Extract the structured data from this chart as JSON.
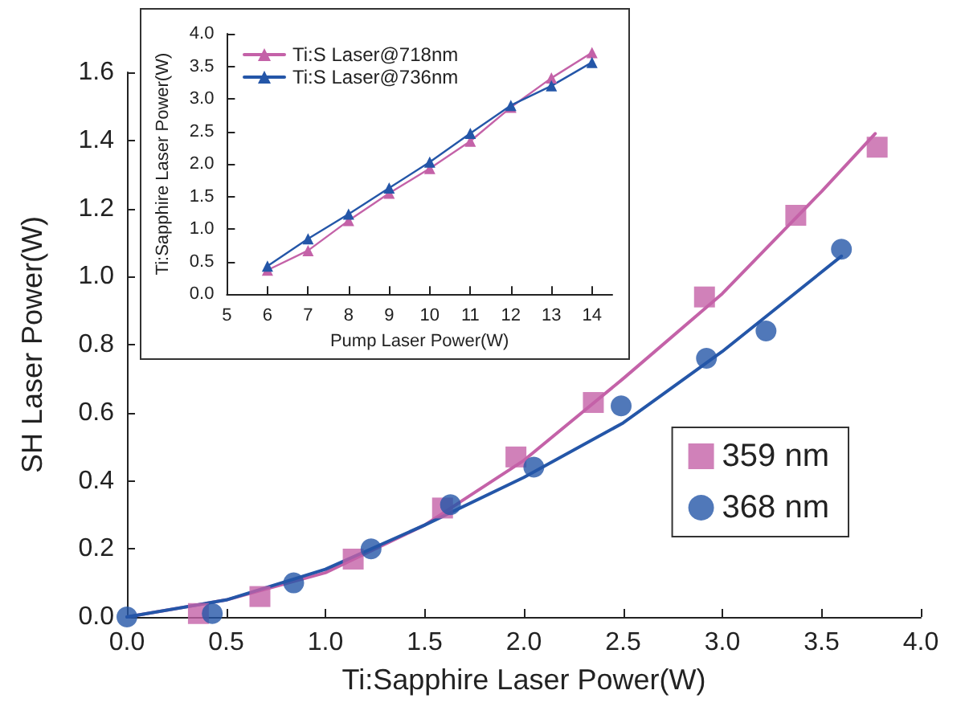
{
  "chart_data": [
    {
      "type": "scatter",
      "xlabel": "Ti:Sapphire Laser Power(W)",
      "ylabel": "SH Laser Power(W)",
      "xlim": [
        0,
        4
      ],
      "xticks": [
        {
          "value": 0,
          "label": "0.0"
        },
        {
          "value": 0.5,
          "label": "0.5"
        },
        {
          "value": 1,
          "label": "1.0"
        },
        {
          "value": 1.5,
          "label": "1.5"
        },
        {
          "value": 2,
          "label": "2.0"
        },
        {
          "value": 2.5,
          "label": "2.5"
        },
        {
          "value": 3,
          "label": "3.0"
        },
        {
          "value": 3.5,
          "label": "3.5"
        },
        {
          "value": 4,
          "label": "4.0"
        }
      ],
      "ylim": [
        0,
        1.6
      ],
      "yticks": [
        {
          "value": 0,
          "label": "0.0"
        },
        {
          "value": 0.2,
          "label": "0.2"
        },
        {
          "value": 0.4,
          "label": "0.4"
        },
        {
          "value": 0.6,
          "label": "0.6"
        },
        {
          "value": 0.8,
          "label": "0.8"
        },
        {
          "value": 1,
          "label": "1.0"
        },
        {
          "value": 1.2,
          "label": "1.2"
        },
        {
          "value": 1.4,
          "label": "1.4"
        },
        {
          "value": 1.6,
          "label": "1.6"
        }
      ],
      "legend": "bottom right",
      "series": [
        {
          "name": "359 nm",
          "marker": "square",
          "color": "#c462a8",
          "x": [
            0.36,
            0.67,
            1.14,
            1.59,
            1.96,
            2.35,
            2.91,
            3.37,
            3.78
          ],
          "values": [
            0.01,
            0.06,
            0.17,
            0.32,
            0.47,
            0.63,
            0.94,
            1.18,
            1.38
          ]
        },
        {
          "name": "368 nm",
          "marker": "circle",
          "color": "#2456a8",
          "x": [
            0,
            0.43,
            0.84,
            1.23,
            1.63,
            2.05,
            2.49,
            2.92,
            3.22,
            3.6
          ],
          "values": [
            0,
            0.01,
            0.1,
            0.2,
            0.33,
            0.44,
            0.62,
            0.76,
            0.84,
            1.08
          ]
        },
        {
          "type": "line",
          "marker": "none",
          "color": "#c462a8",
          "x": [
            0,
            0.5,
            1,
            1.5,
            2,
            2.5,
            3,
            3.5,
            3.77
          ],
          "values": [
            0,
            0.05,
            0.13,
            0.27,
            0.46,
            0.7,
            0.95,
            1.25,
            1.42
          ]
        },
        {
          "type": "line",
          "marker": "none",
          "color": "#2456a8",
          "x": [
            0,
            0.5,
            1,
            1.5,
            2,
            2.5,
            3,
            3.6
          ],
          "values": [
            0,
            0.05,
            0.14,
            0.27,
            0.41,
            0.57,
            0.78,
            1.06
          ]
        }
      ]
    },
    {
      "type": "line",
      "xlabel": "Pump Laser Power(W)",
      "ylabel": "Ti:Sapphire Laser Power(W)",
      "xlim": [
        5,
        14.5
      ],
      "xticks": [
        5,
        6,
        7,
        8,
        9,
        10,
        11,
        12,
        13,
        14
      ],
      "ylim": [
        0,
        4
      ],
      "yticks": [
        {
          "value": 0,
          "label": "0.0"
        },
        {
          "value": 0.5,
          "label": "0.5"
        },
        {
          "value": 1,
          "label": "1.0"
        },
        {
          "value": 1.5,
          "label": "1.5"
        },
        {
          "value": 2,
          "label": "2.0"
        },
        {
          "value": 2.5,
          "label": "2.5"
        },
        {
          "value": 3,
          "label": "3.0"
        },
        {
          "value": 3.5,
          "label": "3.5"
        },
        {
          "value": 4,
          "label": "4.0"
        }
      ],
      "legend": "top left",
      "marker": "triangle",
      "x": [
        6,
        7,
        8,
        9,
        10,
        11,
        12,
        13,
        14
      ],
      "series": [
        {
          "name": "Ti:S Laser@718nm",
          "color": "#c462a8",
          "values": [
            0.37,
            0.67,
            1.13,
            1.55,
            1.93,
            2.35,
            2.87,
            3.32,
            3.71
          ]
        },
        {
          "name": "Ti:S Laser@736nm",
          "color": "#2456a8",
          "values": [
            0.43,
            0.85,
            1.23,
            1.63,
            2.03,
            2.47,
            2.9,
            3.2,
            3.56
          ]
        }
      ]
    }
  ]
}
